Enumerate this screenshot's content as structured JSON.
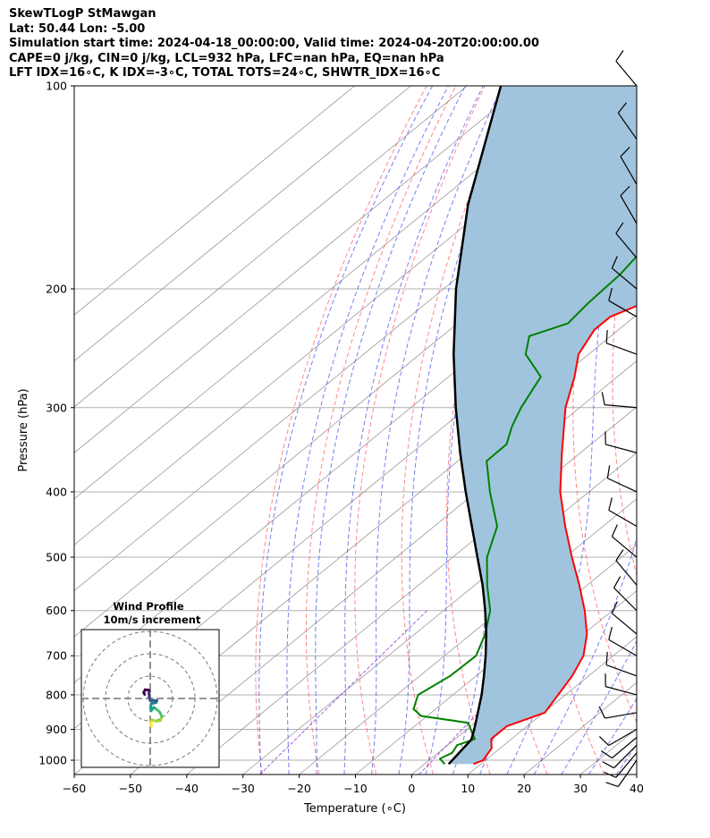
{
  "header": {
    "line1": "SkewTLogP StMawgan",
    "line2": "Lat: 50.44   Lon: -5.00",
    "line3": "Simulation start time: 2024-04-18_00:00:00, Valid time: 2024-04-20T20:00:00.00",
    "line4": "CAPE=0 j/kg, CIN=0 j/kg, LCL=932 hPa, LFC=nan hPa, EQ=nan hPa",
    "line5": "LFT IDX=16∘C, K IDX=-3∘C, TOTAL TOTS=24∘C, SHWTR_IDX=16∘C"
  },
  "colors": {
    "temperature": "#ff0000",
    "dewpoint": "#008000",
    "parcel": "#000000",
    "shade": "#a0c4de",
    "dry_adiabat": "#ff5555",
    "moist_adiabat": "#4455ee",
    "mixing_ratio": "#9933cc",
    "isotherm": "#999999"
  },
  "chart_data": {
    "type": "skewt",
    "title": "SkewTLogP StMawgan",
    "xlabel": "Temperature (∘C)",
    "ylabel": "Pressure (hPa)",
    "xlim": [
      -60,
      40
    ],
    "ylim": [
      1050,
      100
    ],
    "x_ticks": [
      -60,
      -50,
      -40,
      -30,
      -20,
      -10,
      0,
      10,
      20,
      30,
      40
    ],
    "x_tick_labels": [
      "−60",
      "−50",
      "−40",
      "−30",
      "−20",
      "−10",
      "0",
      "10",
      "20",
      "30",
      "40"
    ],
    "y_ticks": [
      1000,
      900,
      800,
      700,
      600,
      500,
      400,
      300,
      200,
      100
    ],
    "y_tick_labels": [
      "1000",
      "900",
      "800",
      "700",
      "600",
      "500",
      "400",
      "300",
      "200",
      "100"
    ],
    "temperature": {
      "p": [
        1013,
        1000,
        960,
        930,
        890,
        850,
        800,
        750,
        700,
        650,
        600,
        550,
        500,
        450,
        400,
        350,
        300,
        270,
        250,
        230,
        220,
        210,
        200,
        185,
        170,
        160,
        150,
        140,
        130,
        120,
        110,
        100
      ],
      "t": [
        8.7,
        9.6,
        8.5,
        6.4,
        6.4,
        10.2,
        8.7,
        7.1,
        4.7,
        0.6,
        -4.9,
        -11.4,
        -18.8,
        -26.7,
        -35.1,
        -43.3,
        -52.5,
        -57.6,
        -61.8,
        -64.3,
        -64.3,
        -61.4,
        -59.7,
        -57.8,
        -56.6,
        -54.5,
        -52.5,
        -50.3,
        -47.9,
        -45.4,
        -42.7,
        -40.0
      ]
    },
    "dewpoint": {
      "p": [
        1013,
        995,
        975,
        950,
        930,
        910,
        880,
        860,
        840,
        800,
        750,
        700,
        650,
        600,
        550,
        500,
        450,
        400,
        360,
        340,
        320,
        300,
        270,
        250,
        235,
        225,
        210,
        190,
        170,
        150,
        140,
        130,
        120,
        110,
        100
      ],
      "td": [
        3.6,
        1.6,
        2.5,
        1.7,
        3.5,
        1.6,
        -1.2,
        -11.0,
        -13.9,
        -16.2,
        -14.6,
        -14.4,
        -17.5,
        -21.7,
        -27.8,
        -33.9,
        -38.8,
        -47.6,
        -54.9,
        -55.0,
        -57.9,
        -60.4,
        -63.6,
        -71.2,
        -74.5,
        -70.4,
        -71.2,
        -71.8,
        -73.6,
        -77.4,
        -80.5,
        -80.5,
        -79.2,
        -79.6,
        -80.0
      ]
    },
    "parcel": {
      "p": [
        1013,
        932,
        900,
        850,
        800,
        750,
        700,
        650,
        600,
        550,
        500,
        450,
        400,
        350,
        300,
        250,
        200,
        150,
        100
      ],
      "t": [
        4.3,
        3.0,
        1.3,
        -1.7,
        -4.9,
        -8.6,
        -12.7,
        -17.3,
        -22.6,
        -28.6,
        -35.6,
        -43.3,
        -51.9,
        -61.4,
        -72.0,
        -84.0,
        -97.8,
        -114.0,
        -134.0
      ]
    },
    "shading": "between parcel and temperature (negative area)",
    "wind_barbs": [
      {
        "p": 1000,
        "dir": 215,
        "spd": 12
      },
      {
        "p": 975,
        "dir": 220,
        "spd": 10
      },
      {
        "p": 950,
        "dir": 225,
        "spd": 10
      },
      {
        "p": 925,
        "dir": 230,
        "spd": 12
      },
      {
        "p": 900,
        "dir": 240,
        "spd": 12
      },
      {
        "p": 850,
        "dir": 260,
        "spd": 10
      },
      {
        "p": 800,
        "dir": 285,
        "spd": 10
      },
      {
        "p": 750,
        "dir": 290,
        "spd": 10
      },
      {
        "p": 700,
        "dir": 300,
        "spd": 10
      },
      {
        "p": 650,
        "dir": 310,
        "spd": 10
      },
      {
        "p": 600,
        "dir": 315,
        "spd": 10
      },
      {
        "p": 550,
        "dir": 320,
        "spd": 10
      },
      {
        "p": 500,
        "dir": 310,
        "spd": 10
      },
      {
        "p": 450,
        "dir": 300,
        "spd": 10
      },
      {
        "p": 400,
        "dir": 295,
        "spd": 10
      },
      {
        "p": 350,
        "dir": 285,
        "spd": 10
      },
      {
        "p": 300,
        "dir": 275,
        "spd": 12
      },
      {
        "p": 250,
        "dir": 290,
        "spd": 12
      },
      {
        "p": 220,
        "dir": 300,
        "spd": 12
      },
      {
        "p": 200,
        "dir": 310,
        "spd": 12
      },
      {
        "p": 180,
        "dir": 320,
        "spd": 12
      },
      {
        "p": 160,
        "dir": 330,
        "spd": 10
      },
      {
        "p": 140,
        "dir": 330,
        "spd": 10
      },
      {
        "p": 120,
        "dir": 325,
        "spd": 10
      },
      {
        "p": 100,
        "dir": 320,
        "spd": 10
      }
    ],
    "hodograph": {
      "title": "Wind Profile",
      "subtitle": "10m/s increment",
      "rings_ms": [
        10,
        20,
        30
      ],
      "u": [
        0.5,
        0.3,
        0.8,
        2.8,
        4.6,
        5.2,
        4.3,
        3.3,
        1.6,
        0.4,
        0.2,
        0.5,
        2.6,
        3.0,
        1.5,
        0.0,
        -0.4,
        -0.6,
        -0.3,
        -0.7,
        -2.3,
        -2.9,
        -2.5
      ],
      "v": [
        -12.5,
        -11.0,
        -9.5,
        -10.2,
        -9.8,
        -8.0,
        -6.2,
        -5.2,
        -4.0,
        -5.5,
        -3.6,
        -2.3,
        -1.8,
        -1.0,
        -0.8,
        -1.0,
        0.5,
        2.6,
        3.2,
        3.8,
        3.9,
        2.7,
        1.8
      ]
    }
  }
}
